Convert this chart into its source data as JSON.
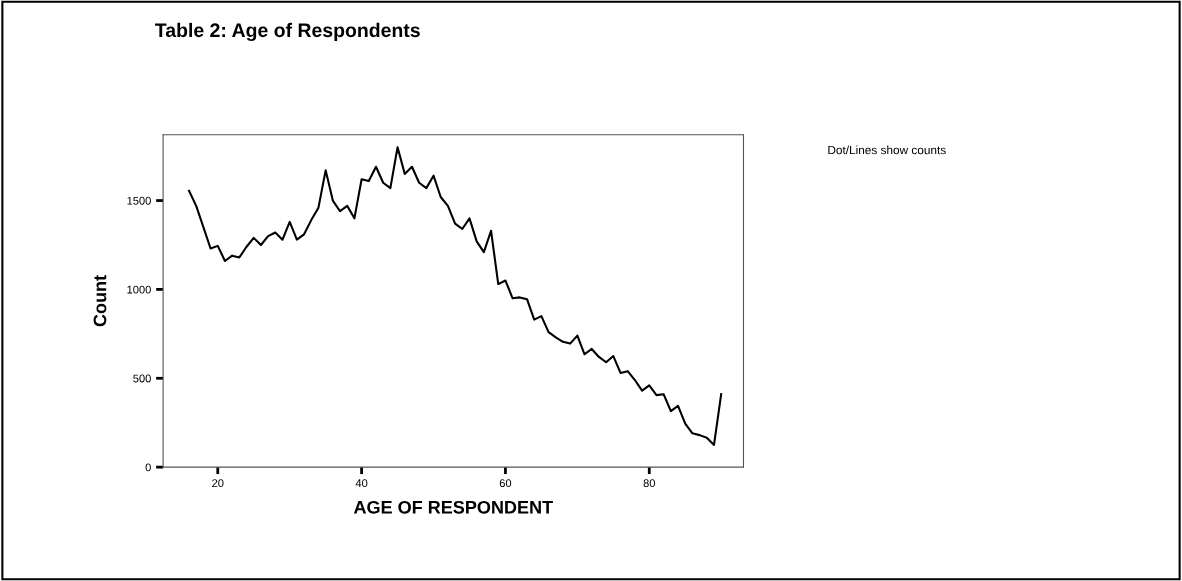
{
  "chart_data": {
    "type": "line",
    "title": "Table 2: Age of Respondents",
    "xlabel": "AGE OF RESPONDENT",
    "ylabel": "Count",
    "annotations": [
      "Dot/Lines show counts"
    ],
    "x": [
      16,
      17,
      18,
      19,
      20,
      21,
      22,
      23,
      24,
      25,
      26,
      27,
      28,
      29,
      30,
      31,
      32,
      33,
      34,
      35,
      36,
      37,
      38,
      39,
      40,
      41,
      42,
      43,
      44,
      45,
      46,
      47,
      48,
      49,
      50,
      51,
      52,
      53,
      54,
      55,
      56,
      57,
      58,
      59,
      60,
      61,
      62,
      63,
      64,
      65,
      66,
      67,
      68,
      69,
      70,
      71,
      72,
      73,
      74,
      75,
      76,
      77,
      78,
      79,
      80,
      81,
      82,
      83,
      84,
      85,
      86,
      87,
      88,
      89,
      90
    ],
    "series": [
      {
        "color": "#000000",
        "values": [
          1555,
          1470,
          1350,
          1230,
          1245,
          1160,
          1190,
          1180,
          1240,
          1290,
          1250,
          1300,
          1320,
          1280,
          1380,
          1280,
          1310,
          1390,
          1460,
          1670,
          1500,
          1440,
          1470,
          1400,
          1620,
          1610,
          1690,
          1600,
          1570,
          1800,
          1650,
          1690,
          1600,
          1570,
          1640,
          1520,
          1470,
          1370,
          1340,
          1400,
          1270,
          1210,
          1330,
          1030,
          1050,
          950,
          955,
          945,
          830,
          850,
          760,
          730,
          705,
          695,
          740,
          635,
          665,
          620,
          590,
          625,
          530,
          540,
          490,
          430,
          460,
          405,
          410,
          315,
          345,
          245,
          190,
          180,
          165,
          125,
          410
        ]
      }
    ],
    "xlim": [
      12.4,
      93.1
    ],
    "ylim": [
      0,
      1870
    ],
    "xticks": [
      20,
      40,
      60,
      80
    ],
    "yticks": [
      0,
      500,
      1000,
      1500
    ],
    "grid": false,
    "legend": false,
    "marker": "none",
    "line_style": "solid"
  }
}
